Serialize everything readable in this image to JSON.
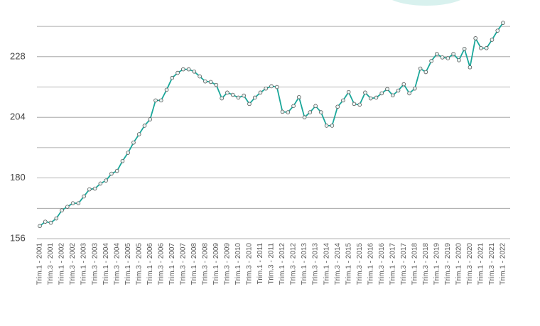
{
  "chart_data": {
    "type": "line",
    "categories": [
      "Trim.1 - 2001",
      null,
      "Trim.3 - 2001",
      null,
      "Trim.1 - 2002",
      null,
      "Trim.3 - 2002",
      null,
      "Trim.1 - 2003",
      null,
      "Trim.3 - 2003",
      null,
      "Trim.1 - 2004",
      null,
      "Trim.3 - 2004",
      null,
      "Trim.1 - 2005",
      null,
      "Trim.3 - 2005",
      null,
      "Trim.1 - 2006",
      null,
      "Trim.3 - 2006",
      null,
      "Trim.1 - 2007",
      null,
      "Trim.3 - 2007",
      null,
      "Trim.1 - 2008",
      null,
      "Trim.3 - 2008",
      null,
      "Trim.1 - 2009",
      null,
      "Trim.3 - 2009",
      null,
      "Trim.1 - 2010",
      null,
      "Trim.3 - 2010",
      null,
      "Trim.1 - 2011",
      null,
      "Trim.3 - 2011",
      null,
      "Trim.1 - 2012",
      null,
      "Trim.3 - 2012",
      null,
      "Trim.1 - 2013",
      null,
      "Trim.3 - 2013",
      null,
      "Trim.1 - 2014",
      null,
      "Trim.3 - 2014",
      null,
      "Trim.1 - 2015",
      null,
      "Trim.3 - 2015",
      null,
      "Trim.1 - 2016",
      null,
      "Trim.3 - 2016",
      null,
      "Trim.1 - 2017",
      null,
      "Trim.3 - 2017",
      null,
      "Trim.1 - 2018",
      null,
      "Trim.3 - 2018",
      null,
      "Trim.1 - 2019",
      null,
      "Trim.3 - 2019",
      null,
      "Trim.1 - 2020",
      null,
      "Trim.3 - 2020",
      null,
      "Trim.1 - 2021",
      null,
      "Trim.3 - 2021",
      null,
      "Trim.1 - 2022"
    ],
    "values": [
      161,
      162.7,
      162.3,
      164,
      167.2,
      168.6,
      170,
      170,
      172.7,
      175.5,
      175.8,
      177.8,
      179,
      181.7,
      182.8,
      186.7,
      190,
      194,
      197.3,
      200.7,
      203.2,
      210.7,
      210.7,
      214.9,
      219.6,
      221.6,
      223,
      223,
      222.1,
      220.2,
      218.2,
      218,
      216.8,
      211.5,
      213.8,
      212.9,
      211.8,
      212.6,
      209.3,
      211.8,
      213.8,
      215.4,
      216.3,
      216,
      206.2,
      206,
      208.5,
      212,
      204,
      206,
      208.5,
      206,
      200.7,
      200.7,
      208.2,
      210.7,
      214,
      209.3,
      209,
      213.8,
      211.5,
      211.8,
      213.5,
      215.2,
      212.7,
      214.6,
      217.1,
      213.5,
      215.4,
      223.3,
      221.9,
      226.3,
      229.1,
      227.7,
      227.4,
      229.1,
      226.6,
      231.1,
      223.8,
      235.3,
      231.4,
      231.4,
      234.7,
      238.3,
      241.4
    ],
    "color": "#1aa79a",
    "ylim": [
      156,
      242
    ],
    "yticks": [
      156,
      180,
      204,
      228
    ],
    "grid_yticks": [
      168,
      192,
      216,
      240
    ],
    "grid": true
  }
}
